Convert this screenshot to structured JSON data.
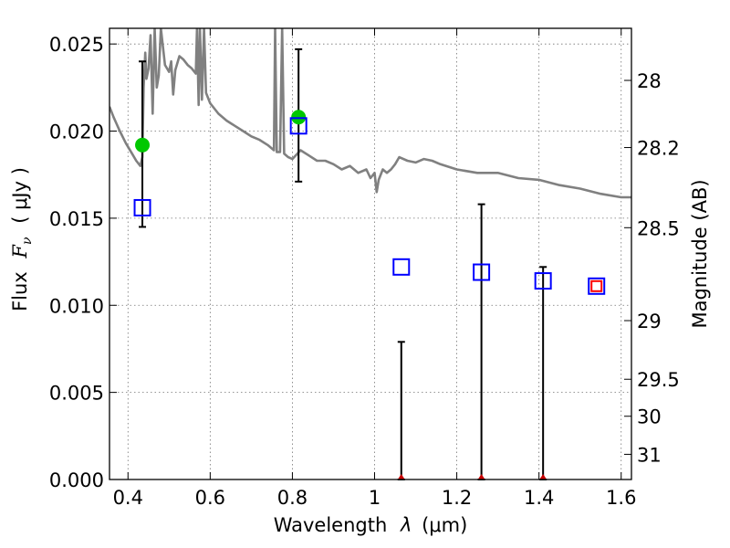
{
  "chart_data": {
    "type": "scatter",
    "xlabel": "Wavelength",
    "xlabel_symbol": "λ",
    "xlabel_unit": "(μm)",
    "ylabel": "Flux",
    "ylabel_symbol": "F",
    "ylabel_subscript": "ν",
    "ylabel_unit": "( μJy )",
    "y2label": "Magnitude (AB)",
    "xlim": [
      0.355,
      1.625
    ],
    "ylim": [
      0.0,
      0.0259
    ],
    "x_ticks": [
      "0.4",
      "0.6",
      "0.8",
      "1",
      "1.2",
      "1.4",
      "1.6"
    ],
    "x_tick_values": [
      0.4,
      0.6,
      0.8,
      1.0,
      1.2,
      1.4,
      1.6
    ],
    "y_ticks": [
      "0.000",
      "0.005",
      "0.010",
      "0.015",
      "0.020",
      "0.025"
    ],
    "y_tick_values": [
      0.0,
      0.005,
      0.01,
      0.015,
      0.02,
      0.025
    ],
    "y2_ticks": [
      "28",
      "28.2",
      "28.5",
      "29",
      "29.5",
      "30",
      "31"
    ],
    "y2_tick_values": [
      28.0,
      28.2,
      28.5,
      29.0,
      29.5,
      30.0,
      31.0
    ],
    "grid": true,
    "series": [
      {
        "kind": "model_spectrum",
        "color": "#808080",
        "points": [
          [
            0.355,
            0.0214
          ],
          [
            0.365,
            0.0208
          ],
          [
            0.38,
            0.02
          ],
          [
            0.395,
            0.0193
          ],
          [
            0.41,
            0.0187
          ],
          [
            0.42,
            0.0183
          ],
          [
            0.43,
            0.018
          ],
          [
            0.435,
            0.0185
          ],
          [
            0.438,
            0.0225
          ],
          [
            0.442,
            0.0245
          ],
          [
            0.445,
            0.023
          ],
          [
            0.45,
            0.0236
          ],
          [
            0.455,
            0.0255
          ],
          [
            0.46,
            0.021
          ],
          [
            0.465,
            0.0259
          ],
          [
            0.47,
            0.0225
          ],
          [
            0.475,
            0.0232
          ],
          [
            0.48,
            0.0259
          ],
          [
            0.49,
            0.0238
          ],
          [
            0.5,
            0.0234
          ],
          [
            0.505,
            0.024
          ],
          [
            0.51,
            0.0221
          ],
          [
            0.515,
            0.0235
          ],
          [
            0.525,
            0.0243
          ],
          [
            0.535,
            0.0241
          ],
          [
            0.545,
            0.0238
          ],
          [
            0.555,
            0.0236
          ],
          [
            0.565,
            0.0233
          ],
          [
            0.568,
            0.0259
          ],
          [
            0.572,
            0.0215
          ],
          [
            0.575,
            0.0259
          ],
          [
            0.58,
            0.0218
          ],
          [
            0.585,
            0.0259
          ],
          [
            0.59,
            0.0222
          ],
          [
            0.6,
            0.0216
          ],
          [
            0.62,
            0.021
          ],
          [
            0.64,
            0.0206
          ],
          [
            0.66,
            0.0203
          ],
          [
            0.68,
            0.02
          ],
          [
            0.7,
            0.0197
          ],
          [
            0.72,
            0.0195
          ],
          [
            0.74,
            0.0192
          ],
          [
            0.755,
            0.0189
          ],
          [
            0.758,
            0.0259
          ],
          [
            0.762,
            0.0188
          ],
          [
            0.77,
            0.0188
          ],
          [
            0.775,
            0.0259
          ],
          [
            0.78,
            0.0187
          ],
          [
            0.79,
            0.0185
          ],
          [
            0.8,
            0.0184
          ],
          [
            0.82,
            0.0189
          ],
          [
            0.84,
            0.0186
          ],
          [
            0.86,
            0.0183
          ],
          [
            0.88,
            0.0183
          ],
          [
            0.9,
            0.0181
          ],
          [
            0.92,
            0.0178
          ],
          [
            0.94,
            0.018
          ],
          [
            0.96,
            0.0176
          ],
          [
            0.98,
            0.0178
          ],
          [
            0.99,
            0.0173
          ],
          [
            1.0,
            0.0176
          ],
          [
            1.005,
            0.0165
          ],
          [
            1.01,
            0.0172
          ],
          [
            1.02,
            0.0178
          ],
          [
            1.03,
            0.0176
          ],
          [
            1.04,
            0.0178
          ],
          [
            1.05,
            0.0181
          ],
          [
            1.06,
            0.0185
          ],
          [
            1.08,
            0.0183
          ],
          [
            1.1,
            0.0182
          ],
          [
            1.12,
            0.0184
          ],
          [
            1.14,
            0.0183
          ],
          [
            1.16,
            0.0181
          ],
          [
            1.2,
            0.0178
          ],
          [
            1.25,
            0.0176
          ],
          [
            1.3,
            0.0176
          ],
          [
            1.35,
            0.0173
          ],
          [
            1.4,
            0.0172
          ],
          [
            1.45,
            0.0169
          ],
          [
            1.5,
            0.0167
          ],
          [
            1.55,
            0.0164
          ],
          [
            1.6,
            0.0162
          ],
          [
            1.625,
            0.0162
          ]
        ]
      },
      {
        "kind": "observed",
        "marker": "circle",
        "color": "#00c800",
        "points": [
          {
            "x": 0.435,
            "y": 0.0192,
            "yerr_low": 0.0145,
            "yerr_high": 0.024
          },
          {
            "x": 0.815,
            "y": 0.0208,
            "yerr_low": 0.0171,
            "yerr_high": 0.0247
          }
        ]
      },
      {
        "kind": "upper_limit",
        "marker": "triangle",
        "color": "#c80000",
        "points": [
          {
            "x": 1.065,
            "y": 0.0,
            "yerr_high": 0.0079
          },
          {
            "x": 1.26,
            "y": 0.0,
            "yerr_high": 0.0158
          },
          {
            "x": 1.41,
            "y": 0.0,
            "yerr_high": 0.0122
          }
        ]
      },
      {
        "kind": "model_photometry",
        "marker": "square-open",
        "color": "#0000ff",
        "points": [
          [
            0.435,
            0.0156
          ],
          [
            0.815,
            0.0203
          ],
          [
            1.065,
            0.0122
          ],
          [
            1.26,
            0.0119
          ],
          [
            1.41,
            0.0114
          ],
          [
            1.54,
            0.0111
          ]
        ]
      },
      {
        "kind": "model_photometry_alt",
        "marker": "square-open",
        "color": "#ff0000",
        "points": [
          [
            1.54,
            0.0111
          ]
        ]
      }
    ]
  }
}
